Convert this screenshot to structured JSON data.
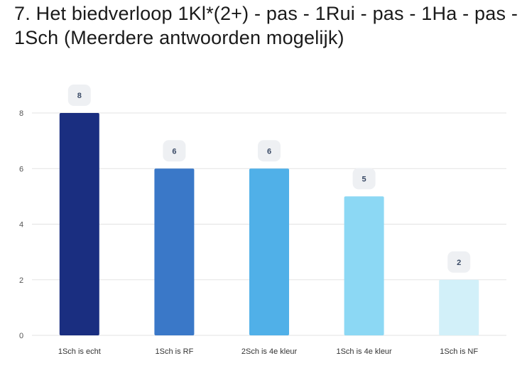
{
  "title": "7. Het biedverloop 1Kl*(2+) - pas - 1Rui - pas - 1Ha - pas - 1Sch (Meerdere antwoorden mogelijk)",
  "chart_data": {
    "type": "bar",
    "title": "7. Het biedverloop 1Kl*(2+) - pas - 1Rui - pas - 1Ha - pas - 1Sch (Meerdere antwoorden mogelijk)",
    "categories": [
      "1Sch is echt",
      "1Sch is RF",
      "2Sch is 4e kleur",
      "1Sch is 4e kleur",
      "1Sch is NF"
    ],
    "values": [
      8,
      6,
      6,
      5,
      2
    ],
    "colors": [
      "#1a2e80",
      "#3a78c8",
      "#50b0e8",
      "#8cd8f4",
      "#d2f0f9"
    ],
    "yticks": [
      0,
      2,
      4,
      6,
      8
    ],
    "ylim": [
      0,
      8
    ],
    "grid": true,
    "legend": "none",
    "xlabel": "",
    "ylabel": ""
  }
}
